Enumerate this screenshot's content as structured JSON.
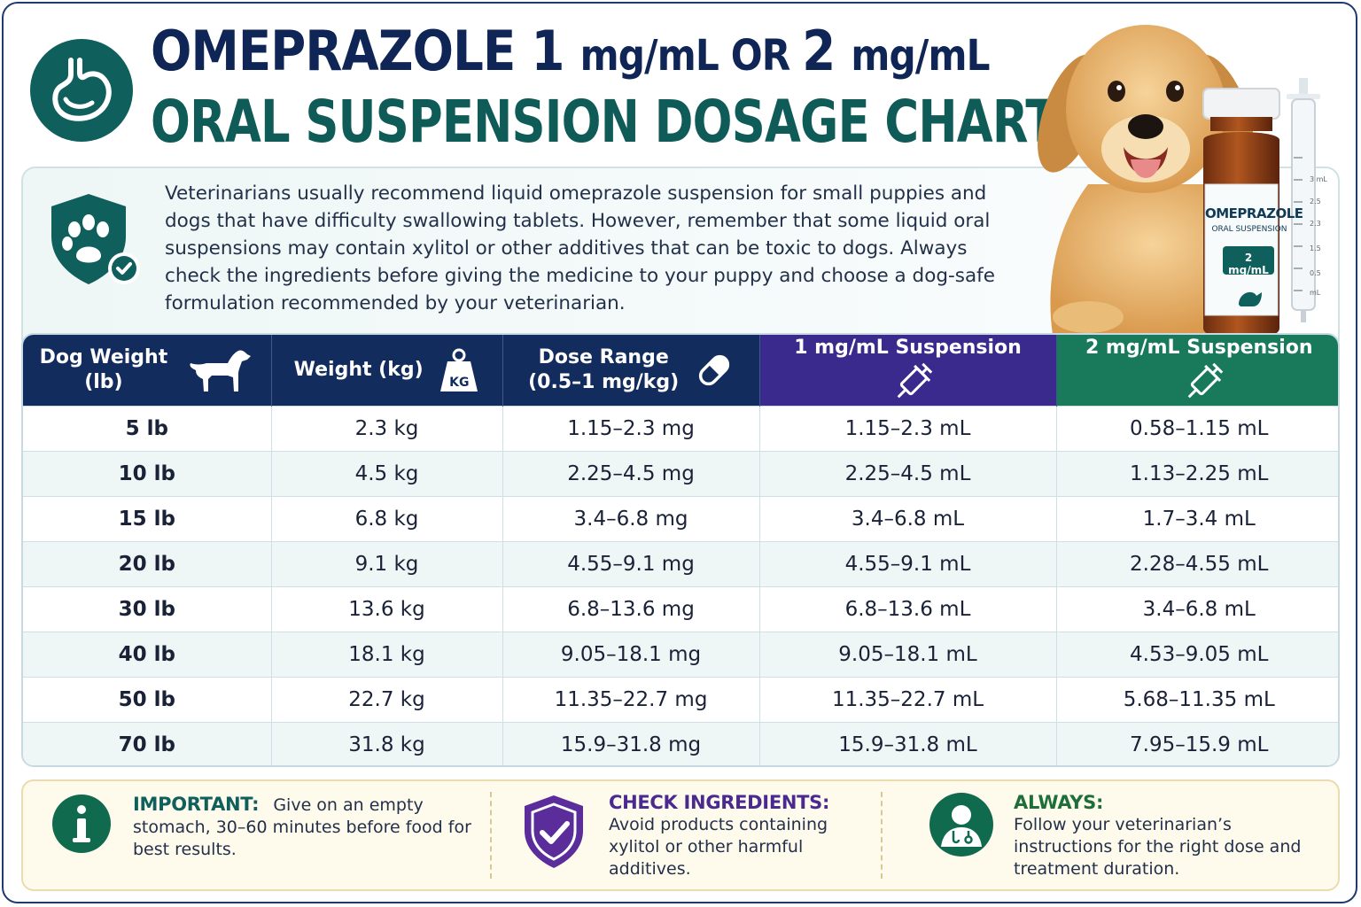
{
  "header": {
    "title_line1_a": "OMEPRAZOLE 1 ",
    "title_line1_b": "mg/mL",
    "title_line1_c": " OR ",
    "title_line1_d": "2 ",
    "title_line1_e": "mg/mL",
    "title_line2": "ORAL SUSPENSION DOSAGE CHART"
  },
  "intro": {
    "text": "Veterinarians usually recommend liquid omeprazole suspension for small puppies and dogs that have difficulty swallowing tablets. However, remember that some liquid oral suspensions may contain xylitol or other additives that can be toxic to dogs. Always check the ingredients before giving the medicine to your puppy and choose a dog-safe formulation recommended by your veterinarian."
  },
  "bottle": {
    "brand": "OMEPRAZOLE",
    "subtitle": "ORAL SUSPENSION",
    "strength": "2 mg/mL",
    "syringe_unit": "mL",
    "syringe_marks": [
      "3 mL",
      "2.5",
      "2.3",
      "1.5",
      "0.5"
    ]
  },
  "table": {
    "headers": [
      {
        "line1": "Dog Weight",
        "line2": "(lb)"
      },
      {
        "line1": "Weight (kg)",
        "line2": ""
      },
      {
        "line1": "Dose Range",
        "line2": "(0.5–1 mg/kg)"
      },
      {
        "line1": "1 mg/mL Suspension",
        "line2": ""
      },
      {
        "line1": "2 mg/mL Suspension",
        "line2": ""
      }
    ],
    "kg_badge": "KG",
    "rows": [
      [
        "5 lb",
        "2.3 kg",
        "1.15–2.3 mg",
        "1.15–2.3 mL",
        "0.58–1.15 mL"
      ],
      [
        "10 lb",
        "4.5 kg",
        "2.25–4.5 mg",
        "2.25–4.5 mL",
        "1.13–2.25 mL"
      ],
      [
        "15 lb",
        "6.8 kg",
        "3.4–6.8 mg",
        "3.4–6.8 mL",
        "1.7–3.4 mL"
      ],
      [
        "20 lb",
        "9.1 kg",
        "4.55–9.1 mg",
        "4.55–9.1 mL",
        "2.28–4.55 mL"
      ],
      [
        "30 lb",
        "13.6 kg",
        "6.8–13.6 mg",
        "6.8–13.6 mL",
        "3.4–6.8 mL"
      ],
      [
        "40 lb",
        "18.1 kg",
        "9.05–18.1 mg",
        "9.05–18.1 mL",
        "4.53–9.05 mL"
      ],
      [
        "50 lb",
        "22.7 kg",
        "11.35–22.7 mg",
        "11.35–22.7 mL",
        "5.68–11.35 mL"
      ],
      [
        "70 lb",
        "31.8 kg",
        "15.9–31.8 mg",
        "15.9–31.8 mL",
        "7.95–15.9 mL"
      ]
    ]
  },
  "footer": {
    "important": {
      "heading": "IMPORTANT:",
      "text": "Give on an empty stomach, 30–60 minutes before food for best results."
    },
    "check": {
      "heading": "CHECK INGREDIENTS:",
      "text": "Avoid products containing xylitol or other harmful additives."
    },
    "always": {
      "heading": "ALWAYS:",
      "text": "Follow your veterinarian’s instructions for the right dose and treatment duration."
    }
  },
  "colors": {
    "navy": "#122c5e",
    "teal": "#0e5b58",
    "purple": "#3a2a8e",
    "green": "#187a5a",
    "amber_bg": "#fffbec"
  }
}
